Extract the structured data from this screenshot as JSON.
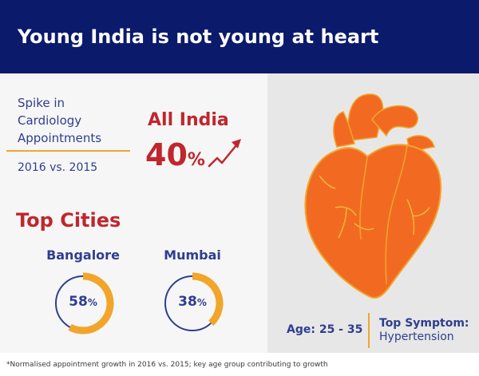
{
  "header": {
    "title": "Young India is not young at heart"
  },
  "spike": {
    "label_lines": [
      "Spike in",
      "Cardiology",
      "Appointments"
    ],
    "comparison": "2016 vs. 2015"
  },
  "all_india": {
    "label": "All India",
    "value": "40",
    "unit": "%"
  },
  "top_cities": {
    "title": "Top Cities"
  },
  "cities": [
    {
      "name": "Bangalore",
      "value": "58",
      "unit": "%",
      "fraction": 0.58
    },
    {
      "name": "Mumbai",
      "value": "38",
      "unit": "%",
      "fraction": 0.38
    }
  ],
  "age": {
    "text": "Age: 25 - 35"
  },
  "symptom": {
    "title": "Top Symptom:",
    "value": "Hypertension"
  },
  "footnote": "*Normalised appointment growth in 2016 vs. 2015; key age group contributing to growth",
  "colors": {
    "header_bg": "#0b1a6b",
    "accent_red": "#c0262d",
    "navy_text": "#2f3e8f",
    "gold": "#f2a52b",
    "heart_orange": "#f26a21"
  },
  "chart_data": {
    "type": "bar",
    "categories": [
      "All India",
      "Bangalore",
      "Mumbai"
    ],
    "values": [
      40,
      58,
      38
    ],
    "title": "Spike in Cardiology Appointments",
    "subtitle": "2016 vs. 2015",
    "xlabel": "",
    "ylabel": "",
    "ylim": [
      0,
      100
    ],
    "unit": "%"
  }
}
